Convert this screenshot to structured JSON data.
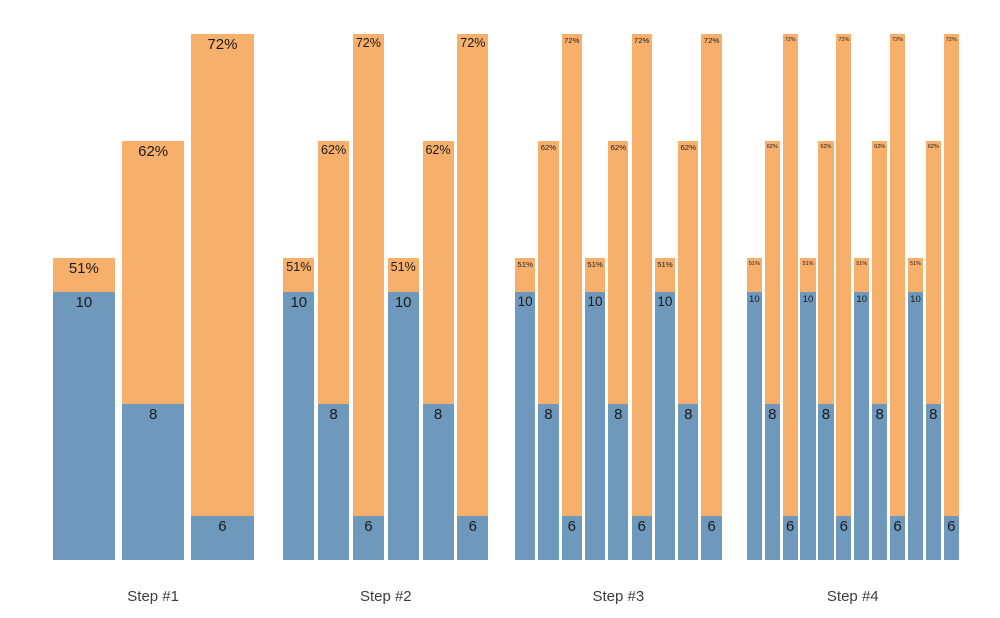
{
  "chart_data": {
    "type": "bar",
    "title": "",
    "description_of_marks": "stacked bars: blue bottom segment labeled with a count, orange top segment labeled with a percent; pattern 51%/10, 62%/8, 72%/6 repeated once per step number",
    "colors": {
      "top_segment": "#F7AF6C",
      "bottom_segment": "#6E99BD",
      "bar_label_text": "#1a1a1a",
      "facet_label_text": "#3c3c3c",
      "background": "#ffffff"
    },
    "axes": {
      "x_labels": [
        "Step #1",
        "Step #2",
        "Step #3",
        "Step #4"
      ],
      "grid": false,
      "legend": false,
      "y_axis_shown": false
    },
    "facets": [
      {
        "label": "Step #1",
        "repeats": 1,
        "bars": [
          {
            "top_label": "51%",
            "top_value": 51,
            "bottom_label": "10",
            "bottom_value": 10
          },
          {
            "top_label": "62%",
            "top_value": 62,
            "bottom_label": "8",
            "bottom_value": 8
          },
          {
            "top_label": "72%",
            "top_value": 72,
            "bottom_label": "6",
            "bottom_value": 6
          }
        ]
      },
      {
        "label": "Step #2",
        "repeats": 2,
        "bars": [
          {
            "top_label": "51%",
            "top_value": 51,
            "bottom_label": "10",
            "bottom_value": 10
          },
          {
            "top_label": "62%",
            "top_value": 62,
            "bottom_label": "8",
            "bottom_value": 8
          },
          {
            "top_label": "72%",
            "top_value": 72,
            "bottom_label": "6",
            "bottom_value": 6
          },
          {
            "top_label": "51%",
            "top_value": 51,
            "bottom_label": "10",
            "bottom_value": 10
          },
          {
            "top_label": "62%",
            "top_value": 62,
            "bottom_label": "8",
            "bottom_value": 8
          },
          {
            "top_label": "72%",
            "top_value": 72,
            "bottom_label": "6",
            "bottom_value": 6
          }
        ]
      },
      {
        "label": "Step #3",
        "repeats": 3,
        "bars": [
          {
            "top_label": "51%",
            "top_value": 51,
            "bottom_label": "10",
            "bottom_value": 10
          },
          {
            "top_label": "62%",
            "top_value": 62,
            "bottom_label": "8",
            "bottom_value": 8
          },
          {
            "top_label": "72%",
            "top_value": 72,
            "bottom_label": "6",
            "bottom_value": 6
          },
          {
            "top_label": "51%",
            "top_value": 51,
            "bottom_label": "10",
            "bottom_value": 10
          },
          {
            "top_label": "62%",
            "top_value": 62,
            "bottom_label": "8",
            "bottom_value": 8
          },
          {
            "top_label": "72%",
            "top_value": 72,
            "bottom_label": "6",
            "bottom_value": 6
          },
          {
            "top_label": "51%",
            "top_value": 51,
            "bottom_label": "10",
            "bottom_value": 10
          },
          {
            "top_label": "62%",
            "top_value": 62,
            "bottom_label": "8",
            "bottom_value": 8
          },
          {
            "top_label": "72%",
            "top_value": 72,
            "bottom_label": "6",
            "bottom_value": 6
          }
        ]
      },
      {
        "label": "Step #4",
        "repeats": 4,
        "bars": [
          {
            "top_label": "51%",
            "top_value": 51,
            "bottom_label": "10",
            "bottom_value": 10
          },
          {
            "top_label": "62%",
            "top_value": 62,
            "bottom_label": "8",
            "bottom_value": 8
          },
          {
            "top_label": "72%",
            "top_value": 72,
            "bottom_label": "6",
            "bottom_value": 6
          },
          {
            "top_label": "51%",
            "top_value": 51,
            "bottom_label": "10",
            "bottom_value": 10
          },
          {
            "top_label": "62%",
            "top_value": 62,
            "bottom_label": "8",
            "bottom_value": 8
          },
          {
            "top_label": "72%",
            "top_value": 72,
            "bottom_label": "6",
            "bottom_value": 6
          },
          {
            "top_label": "51%",
            "top_value": 51,
            "bottom_label": "10",
            "bottom_value": 10
          },
          {
            "top_label": "62%",
            "top_value": 62,
            "bottom_label": "8",
            "bottom_value": 8
          },
          {
            "top_label": "72%",
            "top_value": 72,
            "bottom_label": "6",
            "bottom_value": 6
          },
          {
            "top_label": "51%",
            "top_value": 51,
            "bottom_label": "10",
            "bottom_value": 10
          },
          {
            "top_label": "62%",
            "top_value": 62,
            "bottom_label": "8",
            "bottom_value": 8
          },
          {
            "top_label": "72%",
            "top_value": 72,
            "bottom_label": "6",
            "bottom_value": 6
          }
        ]
      }
    ]
  }
}
